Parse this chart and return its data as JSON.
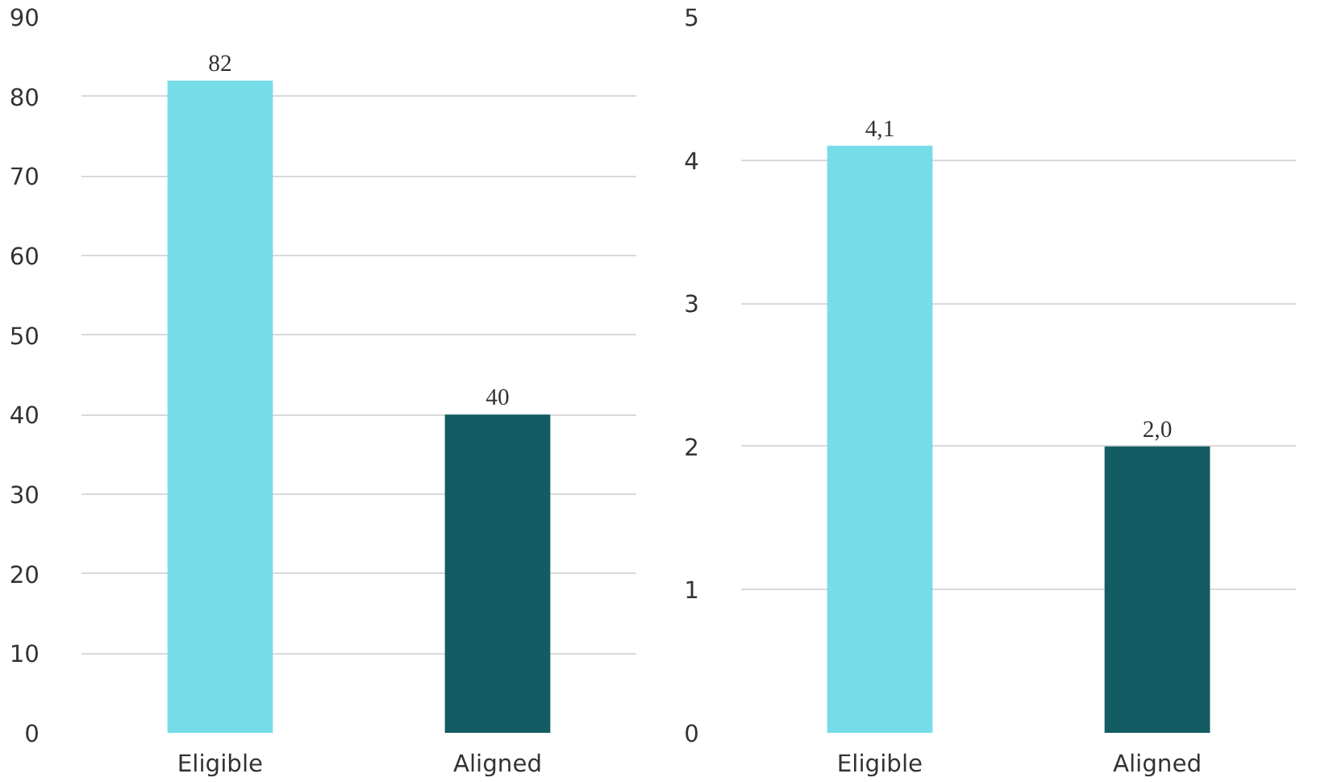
{
  "chart_data": [
    {
      "type": "bar",
      "categories": [
        "Eligible",
        "Aligned"
      ],
      "values": [
        82,
        40
      ],
      "colors": [
        "#76dce8",
        "#135c63"
      ],
      "ylim": [
        0,
        90
      ],
      "yticks": [
        0,
        10,
        20,
        30,
        40,
        50,
        60,
        70,
        80,
        90
      ],
      "grid": "y",
      "data_labels": true
    },
    {
      "type": "bar",
      "categories": [
        "Eligible",
        "Aligned"
      ],
      "values": [
        4.1,
        2.0
      ],
      "colors": [
        "#76dce8",
        "#135c63"
      ],
      "ylim": [
        0,
        5
      ],
      "yticks": [
        0,
        1,
        2,
        3,
        4,
        5
      ],
      "grid": "y",
      "value_labels": [
        "4,1",
        "2,0"
      ]
    }
  ]
}
